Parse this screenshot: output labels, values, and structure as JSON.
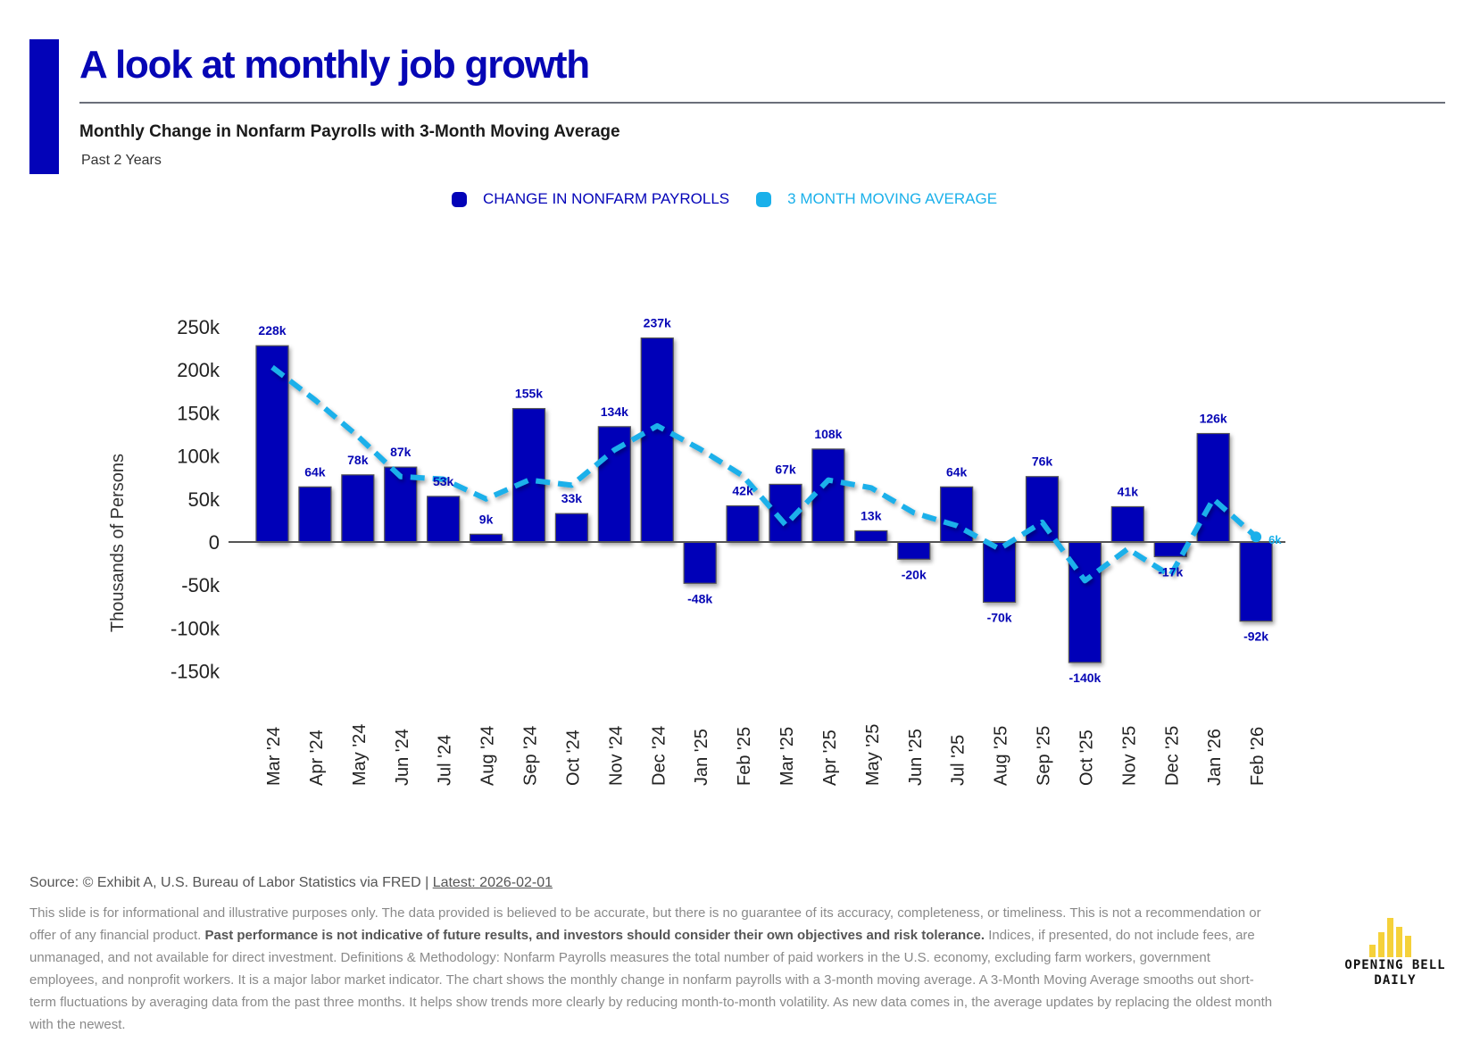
{
  "header": {
    "title": "A look at monthly job growth",
    "subtitle": "Monthly Change in Nonfarm Payrolls with 3-Month Moving Average",
    "period": "Past 2 Years"
  },
  "colors": {
    "brand": "#0606b5",
    "bar": "#0303b8",
    "moving_average": "#1ab0ea",
    "logo": "#f5d13a"
  },
  "legend": [
    {
      "label": "CHANGE IN NONFARM PAYROLLS",
      "color": "#0303b8"
    },
    {
      "label": "3 MONTH MOVING AVERAGE",
      "color": "#1ab0ea"
    }
  ],
  "chart_data": {
    "type": "bar",
    "title": "Monthly Change in Nonfarm Payrolls with 3-Month Moving Average",
    "xlabel": "",
    "ylabel": "Thousands of Persons",
    "ylim": [
      -150,
      250
    ],
    "yticks": [
      250,
      200,
      150,
      100,
      50,
      0,
      -50,
      -100,
      -150
    ],
    "ytick_labels": [
      "250k",
      "200k",
      "150k",
      "100k",
      "50k",
      "0",
      "-50k",
      "-100k",
      "-150k"
    ],
    "grid": false,
    "legend_position": "top-center",
    "categories": [
      "Mar '24",
      "Apr '24",
      "May '24",
      "Jun '24",
      "Jul '24",
      "Aug '24",
      "Sep '24",
      "Oct '24",
      "Nov '24",
      "Dec '24",
      "Jan '25",
      "Feb '25",
      "Mar '25",
      "Apr '25",
      "May '25",
      "Jun '25",
      "Jul '25",
      "Aug '25",
      "Sep '25",
      "Oct '25",
      "Nov '25",
      "Dec '25",
      "Jan '26",
      "Feb '26"
    ],
    "series": [
      {
        "name": "CHANGE IN NONFARM PAYROLLS",
        "type": "bar",
        "values": [
          228,
          64,
          78,
          87,
          53,
          9,
          155,
          33,
          134,
          237,
          -48,
          42,
          67,
          108,
          13,
          -20,
          64,
          -70,
          76,
          -140,
          41,
          -17,
          126,
          -92
        ],
        "labels": [
          "228k",
          "64k",
          "78k",
          "87k",
          "53k",
          "9k",
          "155k",
          "33k",
          "134k",
          "237k",
          "-48k",
          "42k",
          "67k",
          "108k",
          "13k",
          "-20k",
          "64k",
          "-70k",
          "76k",
          "-140k",
          "41k",
          "-17k",
          "126k",
          "-92k"
        ]
      },
      {
        "name": "3 MONTH MOVING AVERAGE",
        "type": "line",
        "style": "dashed",
        "values": [
          203,
          165,
          123,
          76,
          73,
          50,
          72,
          66,
          107,
          135,
          108,
          77,
          20,
          72,
          63,
          34,
          19,
          -8,
          23,
          -45,
          -8,
          -39,
          50,
          6
        ],
        "last_label": "6k"
      }
    ]
  },
  "footer": {
    "source_prefix": "Source: © Exhibit A, U.S. Bureau of Labor Statistics via FRED | ",
    "latest": "Latest: 2026-02-01",
    "disclaimer_part1": "This slide is for informational and illustrative purposes only. The data provided is believed to be accurate, but there is no guarantee of its accuracy, completeness, or timeliness. This is not a recommendation or offer of any financial product. ",
    "disclaimer_bold": "Past performance is not indicative of future results, and investors should consider their own objectives and risk tolerance.",
    "disclaimer_part2": " Indices, if presented, do not include fees, are unmanaged, and not available for direct investment. Definitions & Methodology: Nonfarm Payrolls measures the total number of paid workers in the U.S. economy, excluding farm workers, government employees, and nonprofit workers. It is a major labor market indicator. The chart shows the monthly change in nonfarm payrolls with a 3-month moving average. A 3-Month Moving Average smooths out short-term fluctuations by averaging data from the past three months. It helps show trends more clearly by reducing month-to-month volatility. As new data comes in, the average updates by replacing the oldest month with the newest."
  },
  "logo": {
    "line1": "OPENING BELL",
    "line2": "DAILY"
  }
}
